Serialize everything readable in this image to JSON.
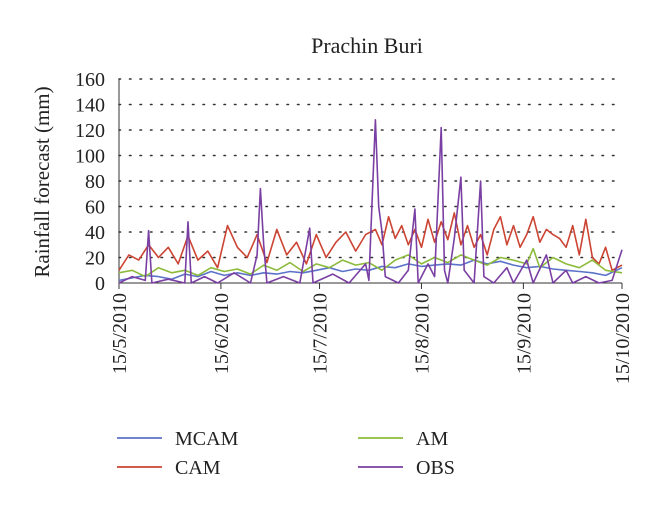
{
  "chart_data": {
    "type": "line",
    "title": "Prachin Buri",
    "xlabel": "",
    "ylabel": "Rainfall forecast (mm)",
    "ylim": [
      0,
      160
    ],
    "yticks": [
      0,
      20,
      40,
      60,
      80,
      100,
      120,
      140,
      160
    ],
    "x_range_days": [
      0,
      153
    ],
    "xticks": [
      {
        "day": 0,
        "label": "15/5/2010"
      },
      {
        "day": 31,
        "label": "15/6/2010"
      },
      {
        "day": 61,
        "label": "15/7/2010"
      },
      {
        "day": 92,
        "label": "15/8/2010"
      },
      {
        "day": 123,
        "label": "15/9/2010"
      },
      {
        "day": 153,
        "label": "15/10/2010"
      }
    ],
    "grid": "dotted-horizontal",
    "legend_placement": "bottom",
    "series": [
      {
        "name": "MCAM",
        "color": "#5b73c9",
        "points": [
          [
            0,
            2
          ],
          [
            4,
            4
          ],
          [
            8,
            6
          ],
          [
            12,
            5
          ],
          [
            16,
            3
          ],
          [
            20,
            7
          ],
          [
            24,
            5
          ],
          [
            28,
            9
          ],
          [
            32,
            6
          ],
          [
            36,
            8
          ],
          [
            40,
            6
          ],
          [
            44,
            8
          ],
          [
            48,
            7
          ],
          [
            52,
            9
          ],
          [
            56,
            8
          ],
          [
            60,
            10
          ],
          [
            64,
            12
          ],
          [
            68,
            9
          ],
          [
            72,
            11
          ],
          [
            76,
            10
          ],
          [
            80,
            13
          ],
          [
            84,
            12
          ],
          [
            88,
            15
          ],
          [
            92,
            13
          ],
          [
            96,
            14
          ],
          [
            100,
            15
          ],
          [
            104,
            14
          ],
          [
            108,
            18
          ],
          [
            112,
            15
          ],
          [
            116,
            17
          ],
          [
            120,
            14
          ],
          [
            124,
            12
          ],
          [
            128,
            13
          ],
          [
            132,
            11
          ],
          [
            136,
            10
          ],
          [
            140,
            9
          ],
          [
            144,
            8
          ],
          [
            148,
            6
          ],
          [
            153,
            12
          ]
        ]
      },
      {
        "name": "CAM",
        "color": "#cc4433",
        "points": [
          [
            0,
            10
          ],
          [
            3,
            22
          ],
          [
            6,
            18
          ],
          [
            9,
            30
          ],
          [
            12,
            20
          ],
          [
            15,
            28
          ],
          [
            18,
            15
          ],
          [
            21,
            37
          ],
          [
            24,
            18
          ],
          [
            27,
            25
          ],
          [
            30,
            12
          ],
          [
            33,
            45
          ],
          [
            36,
            28
          ],
          [
            39,
            20
          ],
          [
            42,
            38
          ],
          [
            45,
            16
          ],
          [
            48,
            42
          ],
          [
            51,
            22
          ],
          [
            54,
            32
          ],
          [
            57,
            15
          ],
          [
            60,
            38
          ],
          [
            63,
            20
          ],
          [
            66,
            32
          ],
          [
            69,
            40
          ],
          [
            72,
            25
          ],
          [
            75,
            38
          ],
          [
            78,
            42
          ],
          [
            80,
            30
          ],
          [
            82,
            52
          ],
          [
            84,
            35
          ],
          [
            86,
            45
          ],
          [
            88,
            30
          ],
          [
            90,
            42
          ],
          [
            92,
            28
          ],
          [
            94,
            50
          ],
          [
            96,
            32
          ],
          [
            98,
            48
          ],
          [
            100,
            34
          ],
          [
            102,
            55
          ],
          [
            104,
            30
          ],
          [
            106,
            45
          ],
          [
            108,
            28
          ],
          [
            110,
            38
          ],
          [
            112,
            22
          ],
          [
            114,
            42
          ],
          [
            116,
            52
          ],
          [
            118,
            30
          ],
          [
            120,
            45
          ],
          [
            122,
            28
          ],
          [
            124,
            38
          ],
          [
            126,
            52
          ],
          [
            128,
            32
          ],
          [
            130,
            42
          ],
          [
            132,
            38
          ],
          [
            134,
            35
          ],
          [
            136,
            28
          ],
          [
            138,
            45
          ],
          [
            140,
            22
          ],
          [
            142,
            50
          ],
          [
            144,
            20
          ],
          [
            146,
            15
          ],
          [
            148,
            28
          ],
          [
            150,
            10
          ],
          [
            153,
            14
          ]
        ]
      },
      {
        "name": "AM",
        "color": "#8cbb3c",
        "points": [
          [
            0,
            8
          ],
          [
            4,
            10
          ],
          [
            8,
            5
          ],
          [
            12,
            12
          ],
          [
            16,
            8
          ],
          [
            20,
            10
          ],
          [
            24,
            6
          ],
          [
            28,
            12
          ],
          [
            32,
            9
          ],
          [
            36,
            11
          ],
          [
            40,
            7
          ],
          [
            44,
            14
          ],
          [
            48,
            10
          ],
          [
            52,
            16
          ],
          [
            56,
            9
          ],
          [
            60,
            15
          ],
          [
            64,
            12
          ],
          [
            68,
            18
          ],
          [
            72,
            14
          ],
          [
            76,
            16
          ],
          [
            80,
            10
          ],
          [
            84,
            18
          ],
          [
            88,
            22
          ],
          [
            92,
            15
          ],
          [
            96,
            20
          ],
          [
            100,
            16
          ],
          [
            104,
            22
          ],
          [
            108,
            18
          ],
          [
            112,
            14
          ],
          [
            116,
            20
          ],
          [
            120,
            18
          ],
          [
            124,
            15
          ],
          [
            126,
            27
          ],
          [
            128,
            12
          ],
          [
            132,
            20
          ],
          [
            136,
            15
          ],
          [
            140,
            12
          ],
          [
            144,
            18
          ],
          [
            148,
            10
          ],
          [
            153,
            8
          ]
        ]
      },
      {
        "name": "OBS",
        "color": "#7a3fa3",
        "points": [
          [
            0,
            0
          ],
          [
            4,
            5
          ],
          [
            8,
            2
          ],
          [
            9,
            41
          ],
          [
            10,
            0
          ],
          [
            15,
            3
          ],
          [
            20,
            0
          ],
          [
            21,
            48
          ],
          [
            22,
            0
          ],
          [
            26,
            5
          ],
          [
            30,
            0
          ],
          [
            35,
            8
          ],
          [
            40,
            0
          ],
          [
            42,
            22
          ],
          [
            43,
            74
          ],
          [
            44,
            30
          ],
          [
            45,
            0
          ],
          [
            50,
            5
          ],
          [
            55,
            0
          ],
          [
            58,
            43
          ],
          [
            59,
            0
          ],
          [
            65,
            7
          ],
          [
            70,
            0
          ],
          [
            75,
            15
          ],
          [
            76,
            2
          ],
          [
            78,
            128
          ],
          [
            79,
            60
          ],
          [
            80,
            40
          ],
          [
            81,
            5
          ],
          [
            85,
            0
          ],
          [
            88,
            10
          ],
          [
            90,
            58
          ],
          [
            91,
            0
          ],
          [
            94,
            15
          ],
          [
            96,
            5
          ],
          [
            98,
            122
          ],
          [
            99,
            10
          ],
          [
            100,
            0
          ],
          [
            102,
            35
          ],
          [
            104,
            83
          ],
          [
            105,
            10
          ],
          [
            108,
            0
          ],
          [
            110,
            80
          ],
          [
            111,
            5
          ],
          [
            114,
            0
          ],
          [
            118,
            12
          ],
          [
            120,
            0
          ],
          [
            124,
            18
          ],
          [
            126,
            0
          ],
          [
            130,
            22
          ],
          [
            132,
            0
          ],
          [
            136,
            10
          ],
          [
            138,
            0
          ],
          [
            142,
            5
          ],
          [
            146,
            0
          ],
          [
            150,
            2
          ],
          [
            153,
            26
          ]
        ]
      }
    ]
  }
}
